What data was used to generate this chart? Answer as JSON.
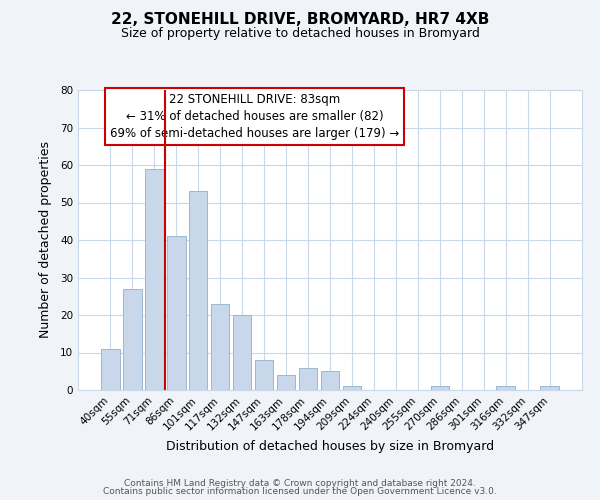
{
  "title": "22, STONEHILL DRIVE, BROMYARD, HR7 4XB",
  "subtitle": "Size of property relative to detached houses in Bromyard",
  "xlabel": "Distribution of detached houses by size in Bromyard",
  "ylabel": "Number of detached properties",
  "bar_labels": [
    "40sqm",
    "55sqm",
    "71sqm",
    "86sqm",
    "101sqm",
    "117sqm",
    "132sqm",
    "147sqm",
    "163sqm",
    "178sqm",
    "194sqm",
    "209sqm",
    "224sqm",
    "240sqm",
    "255sqm",
    "270sqm",
    "286sqm",
    "301sqm",
    "316sqm",
    "332sqm",
    "347sqm"
  ],
  "bar_heights": [
    11,
    27,
    59,
    41,
    53,
    23,
    20,
    8,
    4,
    6,
    5,
    1,
    0,
    0,
    0,
    1,
    0,
    0,
    1,
    0,
    1
  ],
  "bar_color": "#c8d8ea",
  "bar_edgecolor": "#9ab8d0",
  "ylim": [
    0,
    80
  ],
  "yticks": [
    0,
    10,
    20,
    30,
    40,
    50,
    60,
    70,
    80
  ],
  "vline_color": "#cc0000",
  "annotation_line1": "22 STONEHILL DRIVE: 83sqm",
  "annotation_line2": "← 31% of detached houses are smaller (82)",
  "annotation_line3": "69% of semi-detached houses are larger (179) →",
  "footer_line1": "Contains HM Land Registry data © Crown copyright and database right 2024.",
  "footer_line2": "Contains public sector information licensed under the Open Government Licence v3.0.",
  "background_color": "#f0f4f8",
  "plot_background": "#ffffff",
  "grid_color": "#c8d8e8",
  "title_fontsize": 11,
  "subtitle_fontsize": 9,
  "axis_label_fontsize": 9,
  "tick_fontsize": 7.5,
  "footer_fontsize": 6.5
}
